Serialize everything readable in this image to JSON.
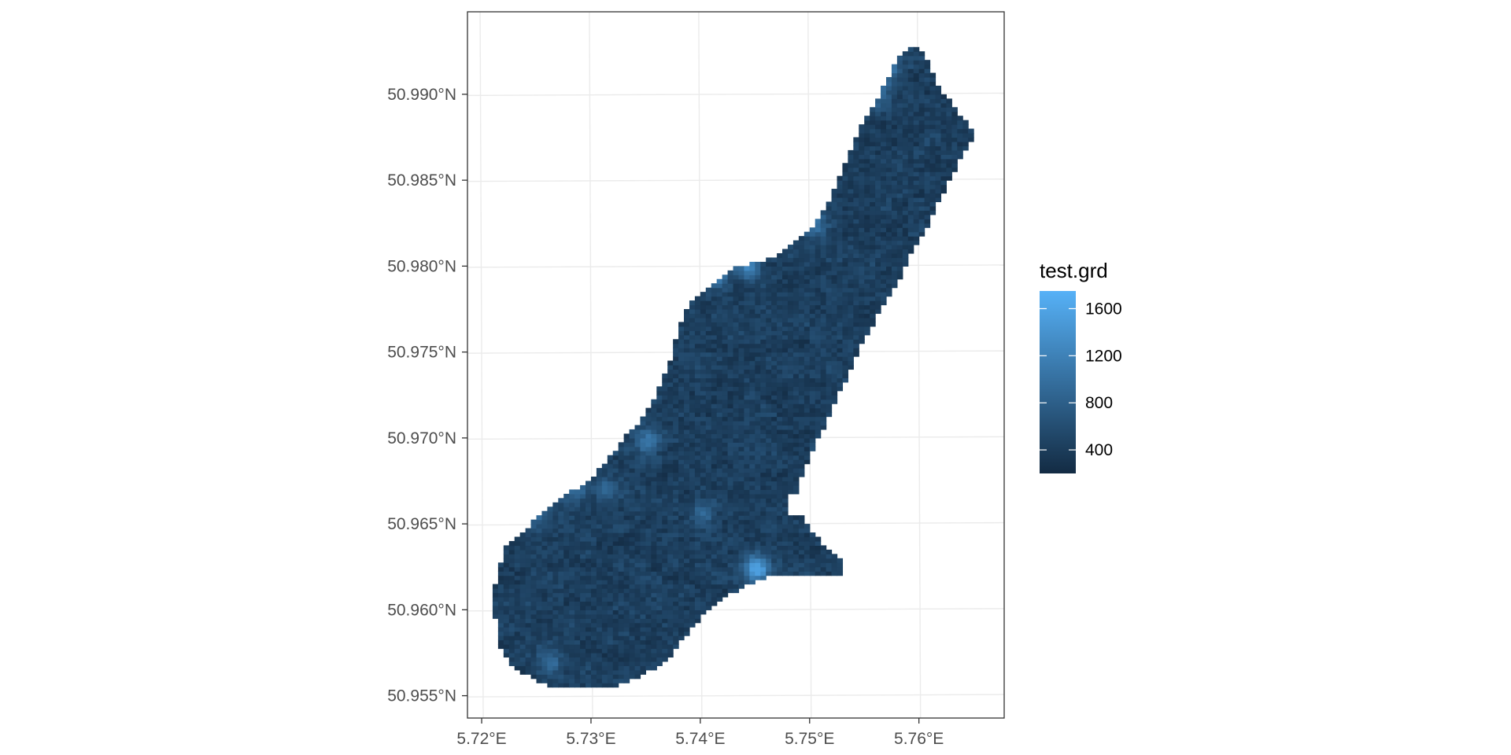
{
  "chart_data": {
    "type": "heatmap",
    "title": "",
    "xlabel": "",
    "ylabel": "",
    "x_ticks": [
      {
        "value": 5.72,
        "label": "5.72°E"
      },
      {
        "value": 5.73,
        "label": "5.73°E"
      },
      {
        "value": 5.74,
        "label": "5.74°E"
      },
      {
        "value": 5.75,
        "label": "5.75°E"
      },
      {
        "value": 5.76,
        "label": "5.76°E"
      }
    ],
    "y_ticks": [
      {
        "value": 50.955,
        "label": "50.955°N"
      },
      {
        "value": 50.96,
        "label": "50.960°N"
      },
      {
        "value": 50.965,
        "label": "50.965°N"
      },
      {
        "value": 50.97,
        "label": "50.970°N"
      },
      {
        "value": 50.975,
        "label": "50.975°N"
      },
      {
        "value": 50.98,
        "label": "50.980°N"
      },
      {
        "value": 50.985,
        "label": "50.985°N"
      },
      {
        "value": 50.99,
        "label": "50.990°N"
      }
    ],
    "xlim": [
      5.7187,
      5.7678
    ],
    "ylim": [
      50.9537,
      50.9948
    ],
    "grid": true,
    "legend": {
      "title": "test.grd",
      "placement": "right",
      "range": [
        200,
        1750
      ],
      "color_low": "#132B43",
      "color_high": "#56B1F7",
      "breaks": [
        {
          "value": 1600,
          "label": "1600"
        },
        {
          "value": 1200,
          "label": "1200"
        },
        {
          "value": 800,
          "label": "800"
        },
        {
          "value": 400,
          "label": "400"
        }
      ]
    },
    "region_boundary": {
      "left_edge": [
        [
          50.9555,
          5.7262
        ],
        [
          50.9565,
          5.7232
        ],
        [
          50.9575,
          5.7218
        ],
        [
          50.959,
          5.7215
        ],
        [
          50.9605,
          5.7208
        ],
        [
          50.962,
          5.7214
        ],
        [
          50.9635,
          5.722
        ],
        [
          50.965,
          5.7245
        ],
        [
          50.966,
          5.7262
        ],
        [
          50.967,
          5.7285
        ],
        [
          50.968,
          5.7305
        ],
        [
          50.969,
          5.7318
        ],
        [
          50.97,
          5.733
        ],
        [
          50.971,
          5.7345
        ],
        [
          50.972,
          5.7355
        ],
        [
          50.973,
          5.7362
        ],
        [
          50.975,
          5.7375
        ],
        [
          50.9765,
          5.738
        ],
        [
          50.9778,
          5.739
        ],
        [
          50.979,
          5.741
        ],
        [
          50.98,
          5.7435
        ],
        [
          50.9805,
          5.747
        ],
        [
          50.9815,
          5.7485
        ],
        [
          50.9825,
          5.7505
        ],
        [
          50.9835,
          5.7515
        ],
        [
          50.985,
          5.7525
        ],
        [
          50.9865,
          5.7535
        ],
        [
          50.988,
          5.7545
        ],
        [
          50.989,
          5.7555
        ],
        [
          50.9905,
          5.7568
        ],
        [
          50.992,
          5.758
        ],
        [
          50.993,
          5.7595
        ]
      ],
      "right_edge": [
        [
          50.9555,
          5.7322
        ],
        [
          50.9565,
          5.7355
        ],
        [
          50.9575,
          5.7375
        ],
        [
          50.959,
          5.7392
        ],
        [
          50.9605,
          5.7415
        ],
        [
          50.9615,
          5.7445
        ],
        [
          50.962,
          5.7465
        ],
        [
          50.962,
          5.7485
        ],
        [
          50.9615,
          5.7505
        ],
        [
          50.9605,
          5.752
        ],
        [
          50.9615,
          5.7532
        ],
        [
          50.963,
          5.753
        ],
        [
          50.964,
          5.751
        ],
        [
          50.9655,
          5.7492
        ],
        [
          50.9665,
          5.7488
        ],
        [
          50.9675,
          5.749
        ],
        [
          50.969,
          5.75
        ],
        [
          50.9705,
          5.7512
        ],
        [
          50.972,
          5.7522
        ],
        [
          50.9735,
          5.7535
        ],
        [
          50.9755,
          5.7548
        ],
        [
          50.9775,
          5.7565
        ],
        [
          50.979,
          5.758
        ],
        [
          50.9805,
          5.759
        ],
        [
          50.982,
          5.7605
        ],
        [
          50.9835,
          5.7615
        ],
        [
          50.985,
          5.7628
        ],
        [
          50.9865,
          5.764
        ],
        [
          50.9878,
          5.7652
        ],
        [
          50.9885,
          5.7642
        ],
        [
          50.9895,
          5.763
        ],
        [
          50.9905,
          5.7618
        ],
        [
          50.992,
          5.7608
        ],
        [
          50.993,
          5.7595
        ]
      ],
      "gaps": [
        {
          "lat_range": [
            50.9655,
            50.9668
          ],
          "lon_range": [
            5.7478,
            5.75
          ]
        }
      ]
    },
    "value_field": {
      "background": 430,
      "noise_amplitude": 130,
      "hotspots": [
        {
          "lat": 50.9624,
          "lon": 5.7452,
          "peak": 1550
        },
        {
          "lat": 50.9802,
          "lon": 5.7443,
          "peak": 1350
        },
        {
          "lat": 50.9795,
          "lon": 5.7415,
          "peak": 1050
        },
        {
          "lat": 50.9915,
          "lon": 5.7572,
          "peak": 1050
        },
        {
          "lat": 50.99,
          "lon": 5.756,
          "peak": 950
        },
        {
          "lat": 50.9825,
          "lon": 5.7505,
          "peak": 1000
        },
        {
          "lat": 50.9698,
          "lon": 5.7352,
          "peak": 1050
        },
        {
          "lat": 50.967,
          "lon": 5.7285,
          "peak": 1000
        },
        {
          "lat": 50.9655,
          "lon": 5.7248,
          "peak": 850
        },
        {
          "lat": 50.9655,
          "lon": 5.7402,
          "peak": 880
        },
        {
          "lat": 50.957,
          "lon": 5.7262,
          "peak": 950
        },
        {
          "lat": 50.967,
          "lon": 5.7315,
          "peak": 800
        }
      ]
    }
  }
}
